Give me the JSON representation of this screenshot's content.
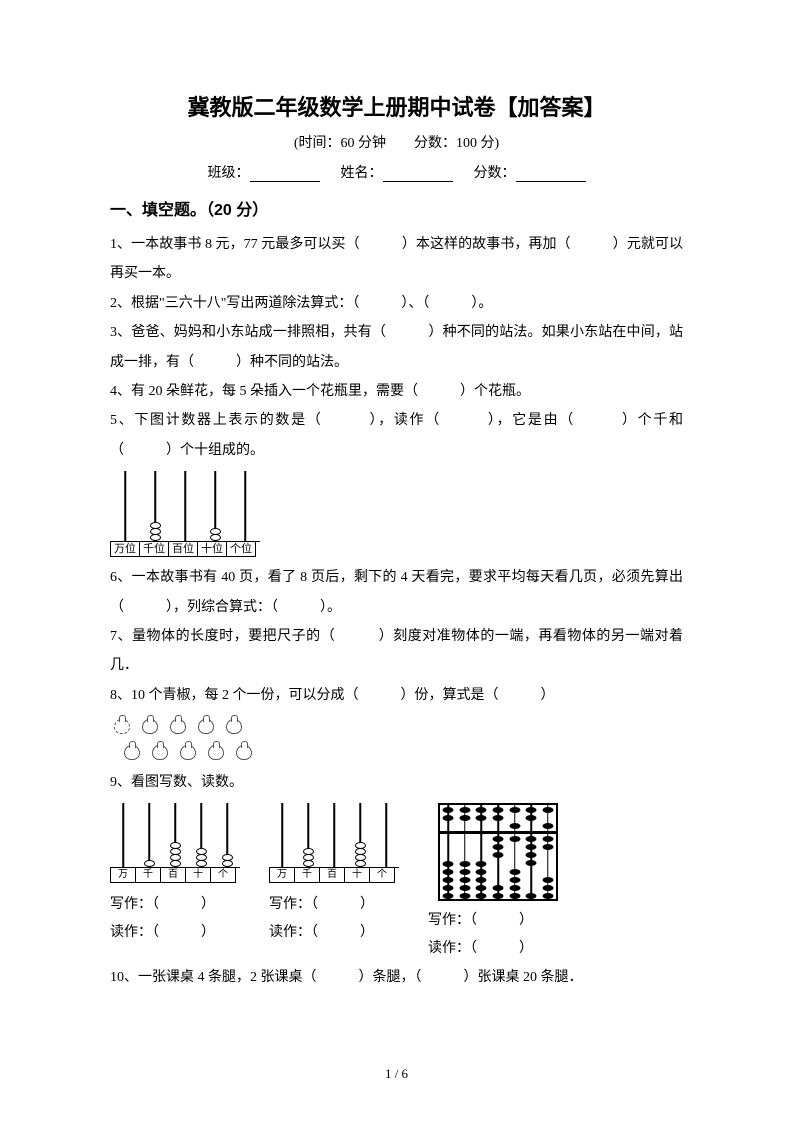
{
  "title": "冀教版二年级数学上册期中试卷【加答案】",
  "subtitle": "(时间：60 分钟　　分数：100 分)",
  "header": {
    "class_label": "班级：",
    "name_label": "姓名：",
    "score_label": "分数："
  },
  "section1": {
    "title": "一、填空题。（20 分）",
    "q1": "1、一本故事书 8 元，77 元最多可以买（　　　）本这样的故事书，再加（　　　）元就可以再买一本。",
    "q2": "2、根据\"三六十八\"写出两道除法算式：（　　　）、（　　　）。",
    "q3": "3、爸爸、妈妈和小东站成一排照相，共有（　　　）种不同的站法。如果小东站在中间，站成一排，有（　　　）种不同的站法。",
    "q4": " 4、有 20 朵鲜花，每 5 朵插入一个花瓶里，需要（　　　）个花瓶。",
    "q5": "5、下图计数器上表示的数是（　　　），读作（　　　），它是由（　　　）个千和（　　　）个十组成的。",
    "q5_counter": {
      "labels": [
        "万位",
        "千位",
        "百位",
        "十位",
        "个位"
      ],
      "beads": [
        0,
        3,
        0,
        2,
        0
      ]
    },
    "q6": "6、一本故事书有 40 页，看了 8 页后，剩下的 4 天看完，要求平均每天看几页，必须先算出（　　　），列综合算式：（　　　）。",
    "q7": "7、量物体的长度时，要把尺子的（　　　）刻度对准物体的一端，再看物体的另一端对着几．",
    "q8": "8、10 个青椒，每 2 个一份，可以分成（　　　）份，算式是（　　　）",
    "peppers_count": 10,
    "q9": "9、看图写数、读数。",
    "q9_counters": {
      "labels_short": [
        "万",
        "千",
        "百",
        "十",
        "个"
      ],
      "left_beads": [
        0,
        1,
        4,
        3,
        2
      ],
      "mid_beads": [
        0,
        3,
        0,
        4,
        0
      ]
    },
    "q9_suanpan": {
      "rods": 7,
      "upper_active": [
        0,
        0,
        0,
        0,
        1,
        0,
        1
      ],
      "lower_active": [
        0,
        0,
        0,
        3,
        1,
        4,
        2
      ]
    },
    "write_label": "写作：（　　　）",
    "read_label": "读作：（　　　）",
    "q10": "10、一张课桌 4 条腿，2 张课桌（　　　）条腿，（　　　）张课桌 20 条腿．"
  },
  "page_number": "1 / 6"
}
